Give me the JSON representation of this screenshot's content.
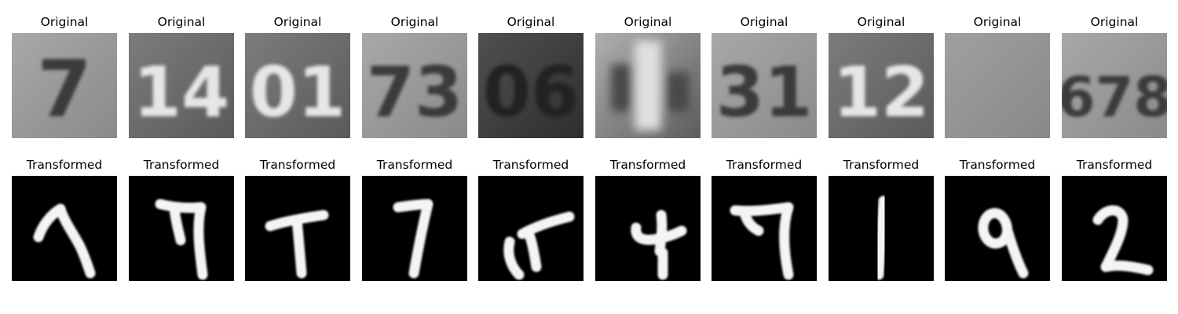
{
  "figure": {
    "row_titles": {
      "original": "Original",
      "transformed": "Transformed"
    },
    "panels": [
      {
        "original_digits": "7",
        "original_tone": "light",
        "transformed_glyph": "hook-7"
      },
      {
        "original_digits": "14",
        "original_tone": "medium",
        "transformed_glyph": "seven-a"
      },
      {
        "original_digits": "01",
        "original_tone": "medium",
        "transformed_glyph": "tee"
      },
      {
        "original_digits": "73",
        "original_tone": "light",
        "transformed_glyph": "seven-b"
      },
      {
        "original_digits": "06",
        "original_tone": "dark",
        "transformed_glyph": "swoosh"
      },
      {
        "original_digits": "",
        "original_tone": "blur",
        "transformed_glyph": "four"
      },
      {
        "original_digits": "31",
        "original_tone": "light",
        "transformed_glyph": "seven-c"
      },
      {
        "original_digits": "12",
        "original_tone": "medium",
        "transformed_glyph": "one"
      },
      {
        "original_digits": "",
        "original_tone": "plain",
        "transformed_glyph": "nine"
      },
      {
        "original_digits": "678",
        "original_tone": "light",
        "transformed_glyph": "two"
      }
    ]
  }
}
